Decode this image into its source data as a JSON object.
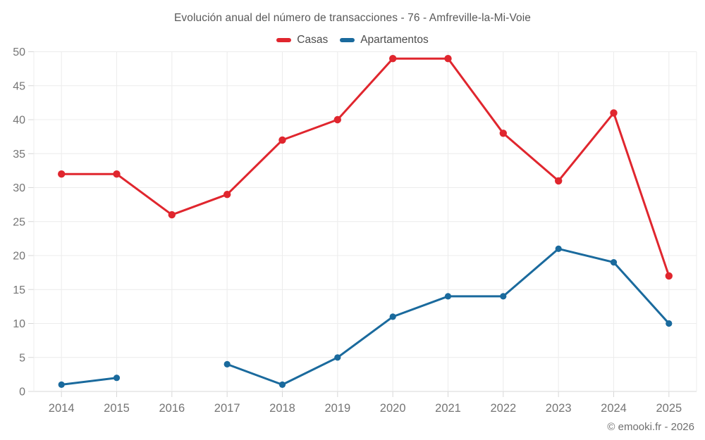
{
  "chart_data": {
    "type": "line",
    "title": "Evolución anual del número de transacciones - 76 - Amfreville-la-Mi-Voie",
    "categories": [
      "2014",
      "2015",
      "2016",
      "2017",
      "2018",
      "2019",
      "2020",
      "2021",
      "2022",
      "2023",
      "2024",
      "2025"
    ],
    "series": [
      {
        "name": "Casas",
        "color": "#e0262e",
        "point_radius": 5.2,
        "values": [
          32,
          32,
          26,
          29,
          37,
          40,
          49,
          49,
          38,
          31,
          41,
          17
        ]
      },
      {
        "name": "Apartamentos",
        "color": "#1a6a9d",
        "point_radius": 4.6,
        "values": [
          1,
          2,
          null,
          4,
          1,
          5,
          11,
          14,
          14,
          21,
          19,
          10
        ]
      }
    ],
    "ylim": [
      0,
      50
    ],
    "ytick_step": 5,
    "grid": true,
    "legend_position": "top",
    "xlabel": "",
    "ylabel": ""
  },
  "footer": {
    "copyright": "© emooki.fr - 2026"
  },
  "style": {
    "grid_color": "#ececec",
    "axis_color": "#d7d7d7",
    "tick_color": "#d7d7d7",
    "tick_label_color": "#757575"
  }
}
